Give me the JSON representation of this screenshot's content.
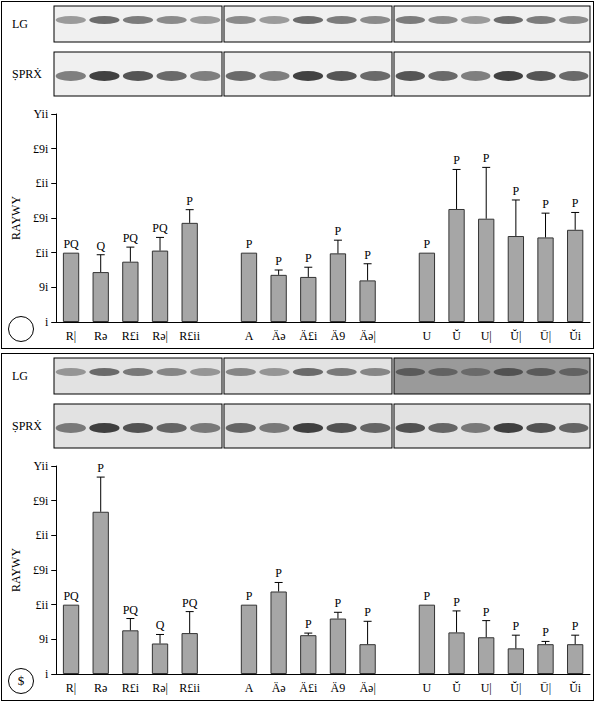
{
  "chart_data": [
    {
      "type": "bar",
      "blot_labels": [
        "LG",
        "ṢPRẊ"
      ],
      "ylabel": "RAYWY",
      "categories": [
        "R|",
        "Rə",
        "R£i",
        "Rə|",
        "R£ii",
        null,
        "A",
        "Äə",
        "Ä£i",
        "Ä9",
        "Äə|",
        null,
        "U",
        "Ŭ",
        "U|",
        "Ŭ|",
        "Ū|",
        "Ŭi"
      ],
      "values": [
        100,
        72,
        87,
        103,
        143,
        null,
        100,
        68,
        65,
        99,
        60,
        null,
        100,
        163,
        149,
        124,
        122,
        133
      ],
      "errors": [
        0,
        25,
        21,
        19,
        19,
        null,
        0,
        7,
        14,
        19,
        24,
        null,
        0,
        57,
        74,
        52,
        35,
        25
      ],
      "letters": [
        "PQ",
        "Q",
        "PQ",
        "PQ",
        "P",
        null,
        "P",
        "P",
        "P",
        "P",
        "P",
        null,
        "P",
        "P",
        "P",
        "P",
        "P",
        "P"
      ],
      "color": "#a6a6a6",
      "ylim": [
        0,
        300
      ],
      "yticks": [
        {
          "value": 0,
          "label": "i"
        },
        {
          "value": 50,
          "label": "9i"
        },
        {
          "value": 100,
          "label": "£ii"
        },
        {
          "value": 150,
          "label": "£9i"
        },
        {
          "value": 200,
          "label": "£ii"
        },
        {
          "value": 250,
          "label": "£9i"
        },
        {
          "value": 300,
          "label": "Yii"
        }
      ],
      "grid": false
    },
    {
      "type": "bar",
      "panel_label": "$",
      "blot_labels": [
        "LG",
        "ṢPRẊ"
      ],
      "ylabel": "RAYWY",
      "categories": [
        "R|",
        "Rə",
        "R£i",
        "Rə|",
        "R£ii",
        null,
        "A",
        "Äə",
        "Ä£i",
        "Ä9",
        "Äə|",
        null,
        "U",
        "Ŭ",
        "U|",
        "Ŭ|",
        "Ū|",
        "Ŭi"
      ],
      "values": [
        100,
        234,
        63,
        44,
        59,
        null,
        100,
        119,
        56,
        80,
        43,
        null,
        100,
        60,
        53,
        37,
        43,
        43
      ],
      "errors": [
        0,
        50,
        17,
        13,
        31,
        null,
        0,
        13,
        3,
        9,
        33,
        null,
        0,
        31,
        24,
        19,
        4,
        13
      ],
      "letters": [
        "PQ",
        "P",
        "PQ",
        "Q",
        "PQ",
        null,
        "P",
        "P",
        "P",
        "P",
        "P",
        null,
        "P",
        "P",
        "P",
        "P",
        "P",
        "P"
      ],
      "color": "#a6a6a6",
      "ylim": [
        0,
        300
      ],
      "yticks": [
        {
          "value": 0,
          "label": "i"
        },
        {
          "value": 50,
          "label": "9i"
        },
        {
          "value": 100,
          "label": "£ii"
        },
        {
          "value": 150,
          "label": "£9i"
        },
        {
          "value": 200,
          "label": "£ii"
        },
        {
          "value": 250,
          "label": "£9i"
        },
        {
          "value": 300,
          "label": "Yii"
        }
      ],
      "grid": false
    }
  ]
}
